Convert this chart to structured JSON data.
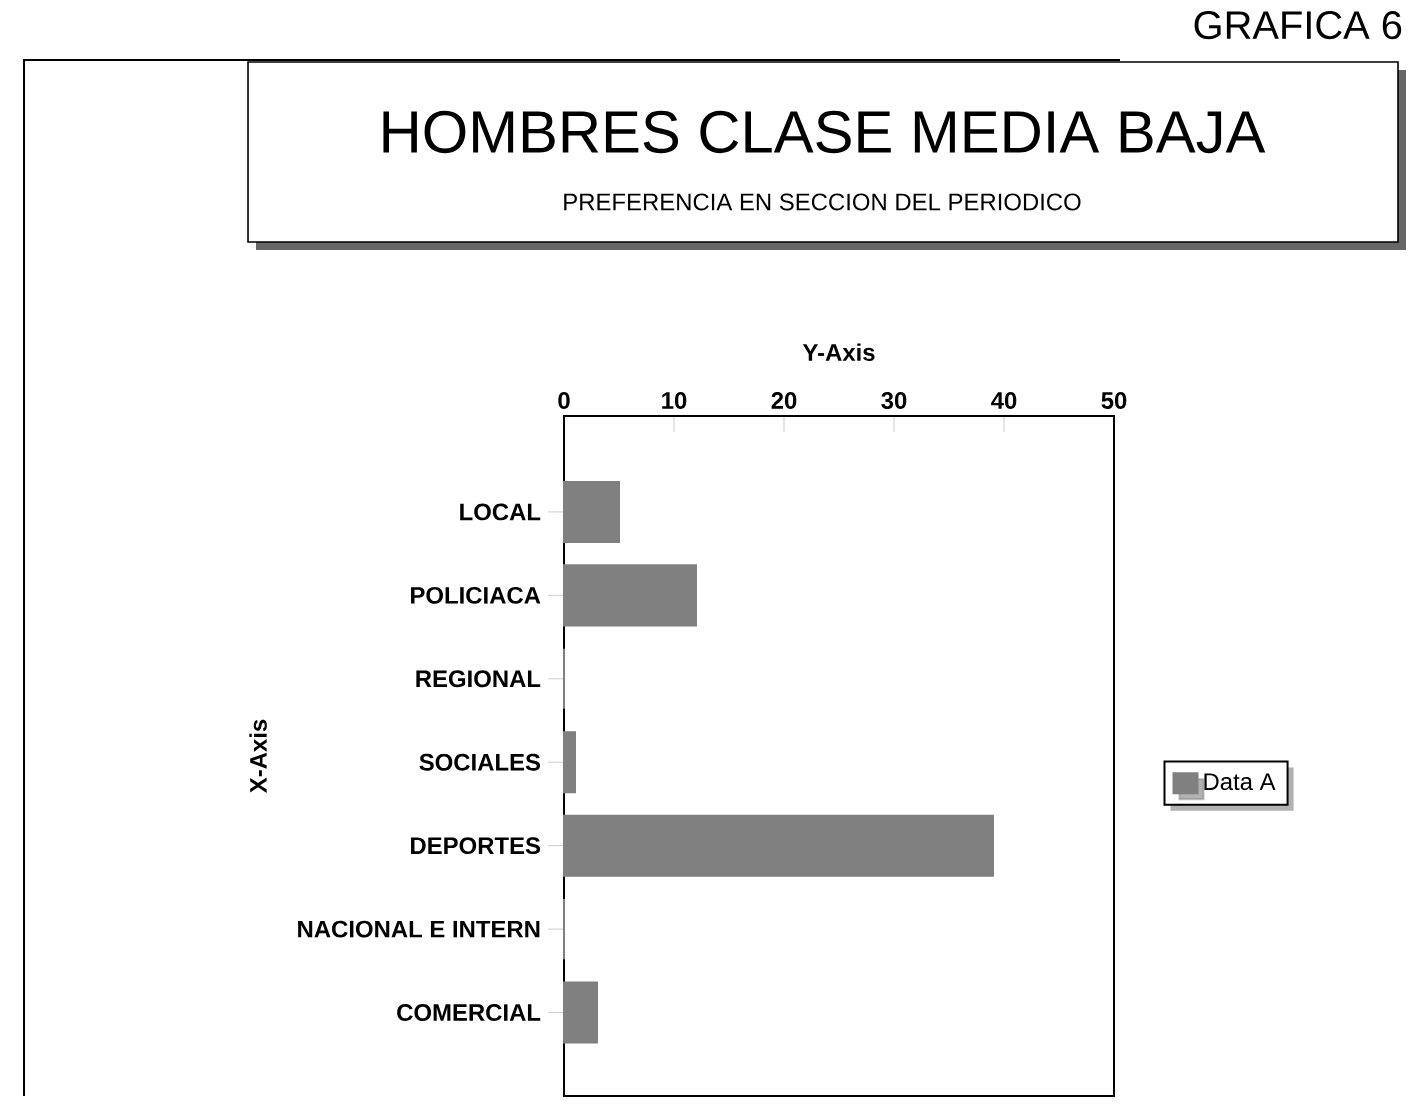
{
  "chart_data": {
    "type": "bar",
    "orientation": "horizontal",
    "title": "HOMBRES CLASE MEDIA BAJA",
    "subtitle": "PREFERENCIA EN SECCION DEL PERIODICO",
    "xlabel": "Y-Axis",
    "ylabel": "X-Axis",
    "annotations": [
      "GRAFICA 6"
    ],
    "categories": [
      "LOCAL",
      "POLICIACA",
      "REGIONAL",
      "SOCIALES",
      "DEPORTES",
      "NACIONAL E INTERN",
      "COMERCIAL"
    ],
    "series": [
      {
        "name": "Data A",
        "color": "#808080",
        "values": [
          5,
          12,
          0,
          1,
          39,
          0,
          3
        ]
      }
    ],
    "xlim": [
      0,
      50
    ],
    "xticks": [
      0,
      10,
      20,
      30,
      40,
      50
    ],
    "legend": "right"
  }
}
